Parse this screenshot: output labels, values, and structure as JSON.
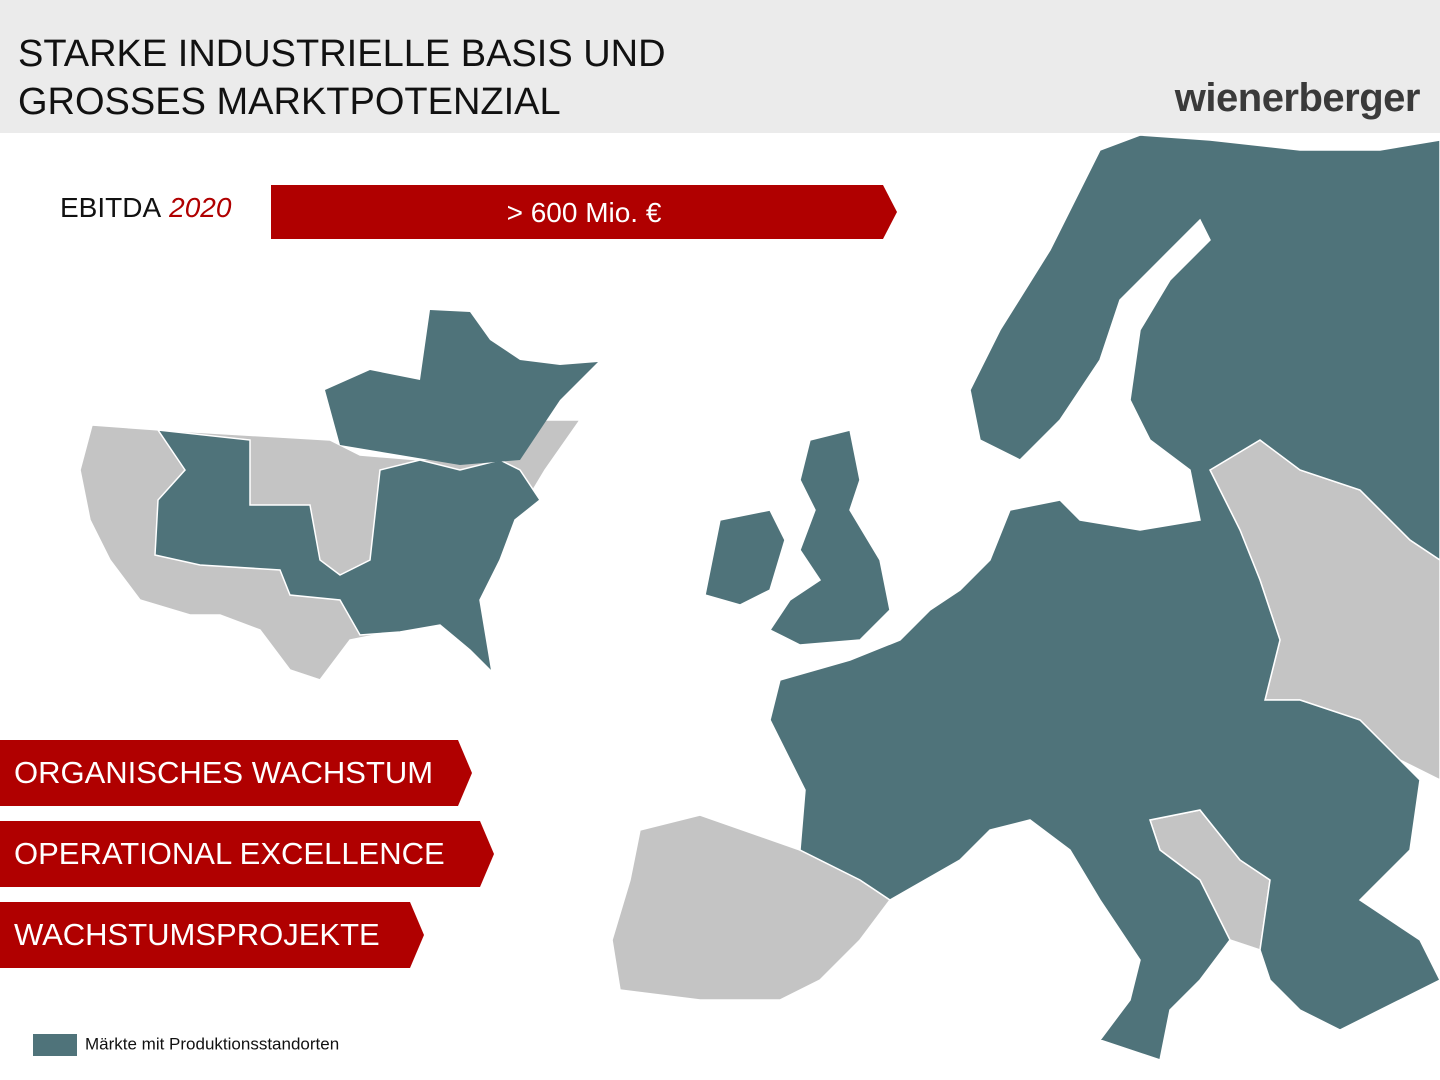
{
  "header": {
    "title_lines": [
      "STARKE INDUSTRIELLE BASIS UND",
      "GROSSES MARKTPOTENZIAL"
    ],
    "logo": "wienerberger"
  },
  "ebitda": {
    "label": "EBITDA",
    "year": "2020",
    "value": "> 600 Mio. €"
  },
  "pillars": [
    "ORGANISCHES WACHSTUM",
    "OPERATIONAL EXCELLENCE",
    "WACHSTUMSPROJEKTE"
  ],
  "legend": {
    "label": "Märkte mit Produktionsstandorten"
  }
}
